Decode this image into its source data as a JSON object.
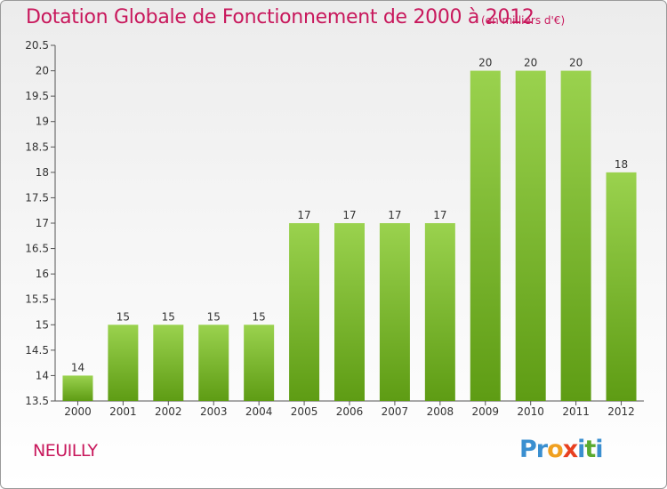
{
  "header": {
    "title": "Dotation Globale de Fonctionnement de 2000 à 2012",
    "subtitle": "(en milliers d'€)"
  },
  "footer": {
    "commune": "NEUILLY",
    "logo_letters": [
      {
        "ch": "P",
        "color": "#3a8fd0"
      },
      {
        "ch": "r",
        "color": "#3a8fd0"
      },
      {
        "ch": "o",
        "color": "#f0a020"
      },
      {
        "ch": "x",
        "color": "#e84020"
      },
      {
        "ch": "i",
        "color": "#3a8fd0"
      },
      {
        "ch": "t",
        "color": "#5aaa30"
      },
      {
        "ch": "i",
        "color": "#3a8fd0"
      }
    ]
  },
  "colors": {
    "title": "#c8185c",
    "bar_top": "#9ad24e",
    "bar_bottom": "#5e9c14",
    "axis": "#555555",
    "grid": "#dddddd"
  },
  "chart_data": {
    "type": "bar",
    "title": "Dotation Globale de Fonctionnement de 2000 à 2012",
    "subtitle": "(en milliers d'€)",
    "categories": [
      "2000",
      "2001",
      "2002",
      "2003",
      "2004",
      "2005",
      "2006",
      "2007",
      "2008",
      "2009",
      "2010",
      "2011",
      "2012"
    ],
    "values": [
      14,
      15,
      15,
      15,
      15,
      17,
      17,
      17,
      17,
      20,
      20,
      20,
      18
    ],
    "data_labels": [
      "14",
      "15",
      "15",
      "15",
      "15",
      "17",
      "17",
      "17",
      "17",
      "20",
      "20",
      "20",
      "18"
    ],
    "ylim": [
      13.5,
      20.5
    ],
    "yticks": [
      "13.5",
      "14",
      "14.5",
      "15",
      "15.5",
      "16",
      "16.5",
      "17",
      "17.5",
      "18",
      "18.5",
      "19",
      "19.5",
      "20",
      "20.5"
    ],
    "xlabel": "",
    "ylabel": "",
    "grid": false,
    "legend": "none"
  }
}
